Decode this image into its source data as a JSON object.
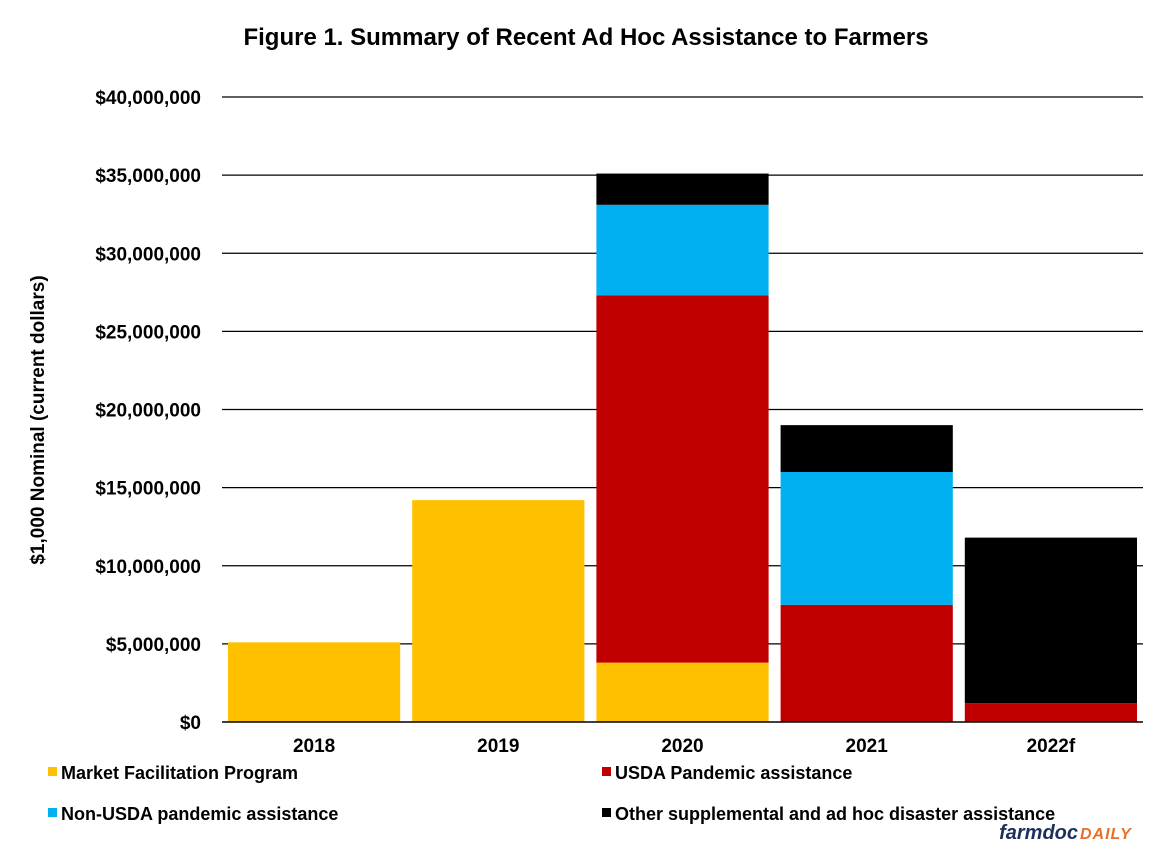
{
  "chart_data": {
    "type": "bar",
    "stacked": true,
    "title": "Figure 1. Summary of Recent Ad Hoc Assistance to Farmers",
    "xlabel": "",
    "ylabel": "$1,000 Nominal (current dollars)",
    "ylim": [
      0,
      40000000
    ],
    "yticks": [
      0,
      5000000,
      10000000,
      15000000,
      20000000,
      25000000,
      30000000,
      35000000,
      40000000
    ],
    "ytick_labels": [
      "$0",
      "$5,000,000",
      "$10,000,000",
      "$15,000,000",
      "$20,000,000",
      "$25,000,000",
      "$30,000,000",
      "$35,000,000",
      "$40,000,000"
    ],
    "categories": [
      "2018",
      "2019",
      "2020",
      "2021",
      "2022f"
    ],
    "grid": "horizontal",
    "legend_position": "bottom",
    "series": [
      {
        "name": "Market Facilitation Program",
        "color": "#ffc000",
        "values": [
          5100000,
          14200000,
          3800000,
          0,
          0
        ]
      },
      {
        "name": "USDA Pandemic assistance",
        "color": "#c00000",
        "values": [
          0,
          0,
          23500000,
          7500000,
          1200000
        ]
      },
      {
        "name": "Non-USDA pandemic assistance",
        "color": "#00b0f0",
        "values": [
          0,
          0,
          5800000,
          8500000,
          0
        ]
      },
      {
        "name": "Other supplemental and ad hoc disaster assistance",
        "color": "#000000",
        "values": [
          0,
          0,
          2000000,
          3000000,
          10600000
        ]
      }
    ]
  },
  "logo": {
    "part1": "farmdoc",
    "part2": "DAILY"
  }
}
